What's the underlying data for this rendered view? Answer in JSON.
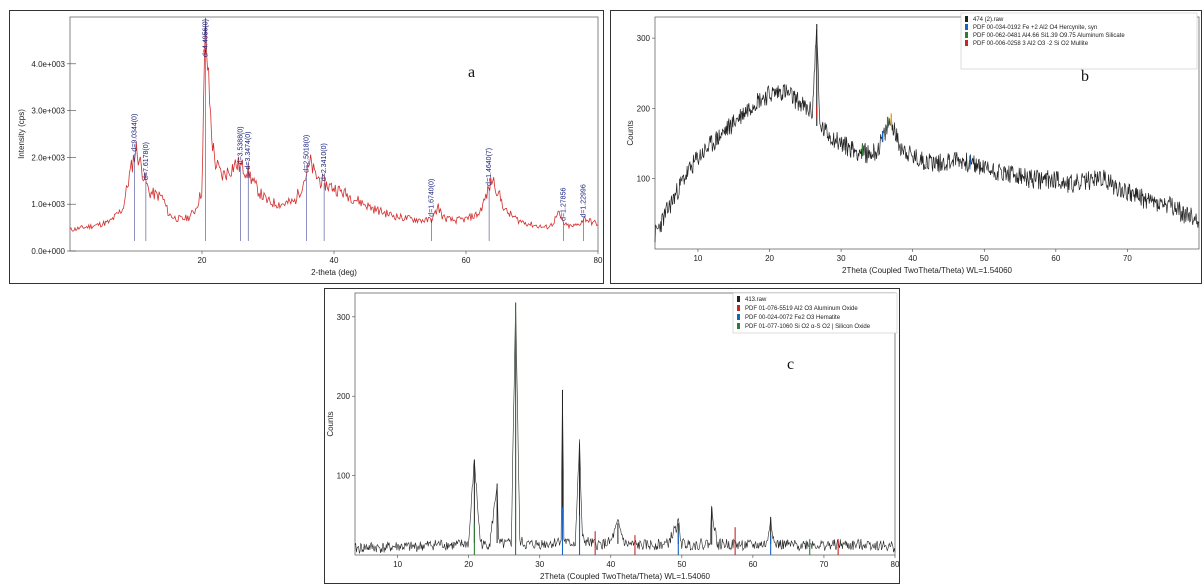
{
  "chart_data": [
    {
      "type": "line",
      "panel_label": "a",
      "xlabel": "2-theta (deg)",
      "ylabel": "Intensity (cps)",
      "xlim": [
        0,
        80
      ],
      "ylim": [
        0,
        5000
      ],
      "xticks": [
        "20",
        "40",
        "60",
        "80"
      ],
      "yticks": [
        "0.0e+000",
        "1.0e+003",
        "2.0e+003",
        "3.0e+003",
        "4.0e+003"
      ],
      "series": [
        {
          "color": "#d32f2f",
          "x": [
            0,
            2,
            4,
            6,
            8,
            9,
            10,
            11,
            12,
            13,
            14,
            15,
            16,
            17,
            18,
            19,
            20,
            20.5,
            21,
            21.5,
            22,
            23,
            24,
            25,
            26,
            27,
            28,
            29,
            30,
            32,
            34,
            35,
            36,
            36.5,
            37,
            38,
            39,
            40,
            42,
            44,
            46,
            48,
            50,
            52,
            54,
            55,
            55.8,
            56.5,
            58,
            60,
            62,
            63,
            64,
            65,
            66,
            68,
            70,
            72,
            73,
            74,
            75,
            76,
            77,
            78,
            79,
            80
          ],
          "y": [
            450,
            500,
            550,
            620,
            900,
            1600,
            2200,
            1700,
            1250,
            1200,
            1150,
            780,
            700,
            680,
            720,
            880,
            1300,
            4800,
            3600,
            2400,
            1900,
            1600,
            1700,
            1850,
            1800,
            1700,
            1400,
            1200,
            1050,
            1000,
            1050,
            1350,
            1700,
            1900,
            1650,
            1500,
            1400,
            1350,
            1200,
            1050,
            900,
            800,
            720,
            680,
            650,
            700,
            950,
            720,
            650,
            680,
            800,
            1150,
            1550,
            1200,
            850,
            650,
            560,
            500,
            560,
            800,
            550,
            520,
            560,
            700,
            620,
            580
          ]
        }
      ],
      "peak_labels": [
        {
          "x": 9.8,
          "text": "d=9.0344(0)"
        },
        {
          "x": 11.5,
          "text": "d=7.6178(0)"
        },
        {
          "x": 20.5,
          "text": "d=4.4956(0)"
        },
        {
          "x": 25.8,
          "text": "d=3.5388(0)"
        },
        {
          "x": 27.0,
          "text": "d=3.3474(0)"
        },
        {
          "x": 35.8,
          "text": "d=2.5018(0)"
        },
        {
          "x": 38.5,
          "text": "d=2.3410(0)"
        },
        {
          "x": 54.8,
          "text": "d=1.6740(0)"
        },
        {
          "x": 63.5,
          "text": "d=1.4640(7)"
        },
        {
          "x": 74.8,
          "text": "d=1.27856"
        },
        {
          "x": 77.8,
          "text": "d=1.22996"
        }
      ]
    },
    {
      "type": "line",
      "panel_label": "b",
      "xlabel": "2Theta (Coupled TwoTheta/Theta) WL=1.54060",
      "ylabel": "Counts",
      "xlim": [
        4,
        80
      ],
      "ylim": [
        0,
        330
      ],
      "xticks": [
        "10",
        "20",
        "30",
        "40",
        "50",
        "60",
        "70"
      ],
      "yticks": [
        "100",
        "200",
        "300"
      ],
      "legend": [
        {
          "label": "474 (2).raw",
          "color": "#222222"
        },
        {
          "label": "PDF 00-034-0192 Fe +2 Al2 O4 Hercynite, syn",
          "color": "#1565c0"
        },
        {
          "label": "PDF 00-062-0481 Al4.66 Si1.39 O9.75 Aluminum Silicate",
          "color": "#2e7d32"
        },
        {
          "label": "PDF 00-006-0258 3 Al2 O3 ·2 Si O2 Mullite",
          "color": "#c62828"
        }
      ],
      "series": [
        {
          "name": "474 (2).raw",
          "color": "#222222",
          "x": [
            4,
            6,
            8,
            10,
            12,
            14,
            16,
            18,
            20,
            22,
            24,
            25,
            26,
            26.6,
            27,
            28,
            30,
            32,
            34,
            35,
            36,
            37,
            38,
            40,
            42,
            44,
            46,
            48,
            50,
            52,
            54,
            56,
            58,
            60,
            62,
            64,
            66,
            67,
            68,
            70,
            72,
            74,
            76,
            78,
            80
          ],
          "y": [
            20,
            60,
            100,
            130,
            150,
            170,
            190,
            210,
            220,
            225,
            210,
            200,
            195,
            320,
            175,
            165,
            150,
            140,
            135,
            140,
            160,
            185,
            150,
            130,
            125,
            122,
            128,
            122,
            115,
            110,
            105,
            100,
            98,
            100,
            92,
            95,
            102,
            98,
            90,
            82,
            72,
            65,
            60,
            50,
            40
          ]
        }
      ]
    },
    {
      "type": "line",
      "panel_label": "c",
      "xlabel": "2Theta (Coupled TwoTheta/Theta) WL=1.54060",
      "ylabel": "Counts",
      "xlim": [
        4,
        80
      ],
      "ylim": [
        0,
        330
      ],
      "xticks": [
        "10",
        "20",
        "30",
        "40",
        "50",
        "60",
        "70",
        "80"
      ],
      "yticks": [
        "100",
        "200",
        "300"
      ],
      "legend": [
        {
          "label": "413.raw",
          "color": "#222222"
        },
        {
          "label": "PDF 01-076-5519 Al2 O3 Aluminum Oxide",
          "color": "#c62828"
        },
        {
          "label": "PDF 00-024-0072 Fe2 O3 Hematite",
          "color": "#1565c0"
        },
        {
          "label": "PDF 01-077-1060 Si O2 α-S   O2 | Silicon Oxide",
          "color": "#2e7d32"
        }
      ],
      "series": [
        {
          "name": "413.raw",
          "color": "#222222",
          "x": [
            4,
            6,
            8,
            10,
            12,
            14,
            16,
            18,
            20,
            20.8,
            21.6,
            22,
            23,
            24,
            24.2,
            25,
            26,
            26.6,
            27.2,
            28,
            30,
            32,
            33,
            33.2,
            33.4,
            34,
            35,
            35.6,
            36,
            37,
            38,
            39,
            40,
            41,
            42,
            44,
            46,
            48,
            49.5,
            50,
            52,
            54,
            54.2,
            55,
            56,
            58,
            60,
            62,
            62.5,
            63,
            64,
            66,
            68,
            70,
            72,
            74,
            76,
            78,
            80
          ],
          "y": [
            8,
            10,
            9,
            11,
            10,
            12,
            14,
            12,
            15,
            120,
            20,
            12,
            15,
            90,
            15,
            13,
            15,
            318,
            18,
            13,
            14,
            15,
            20,
            208,
            20,
            14,
            16,
            140,
            20,
            15,
            13,
            14,
            16,
            40,
            14,
            12,
            13,
            14,
            40,
            14,
            13,
            15,
            60,
            13,
            14,
            13,
            12,
            14,
            48,
            14,
            13,
            12,
            14,
            12,
            13,
            12,
            14,
            12,
            10
          ]
        }
      ]
    }
  ]
}
